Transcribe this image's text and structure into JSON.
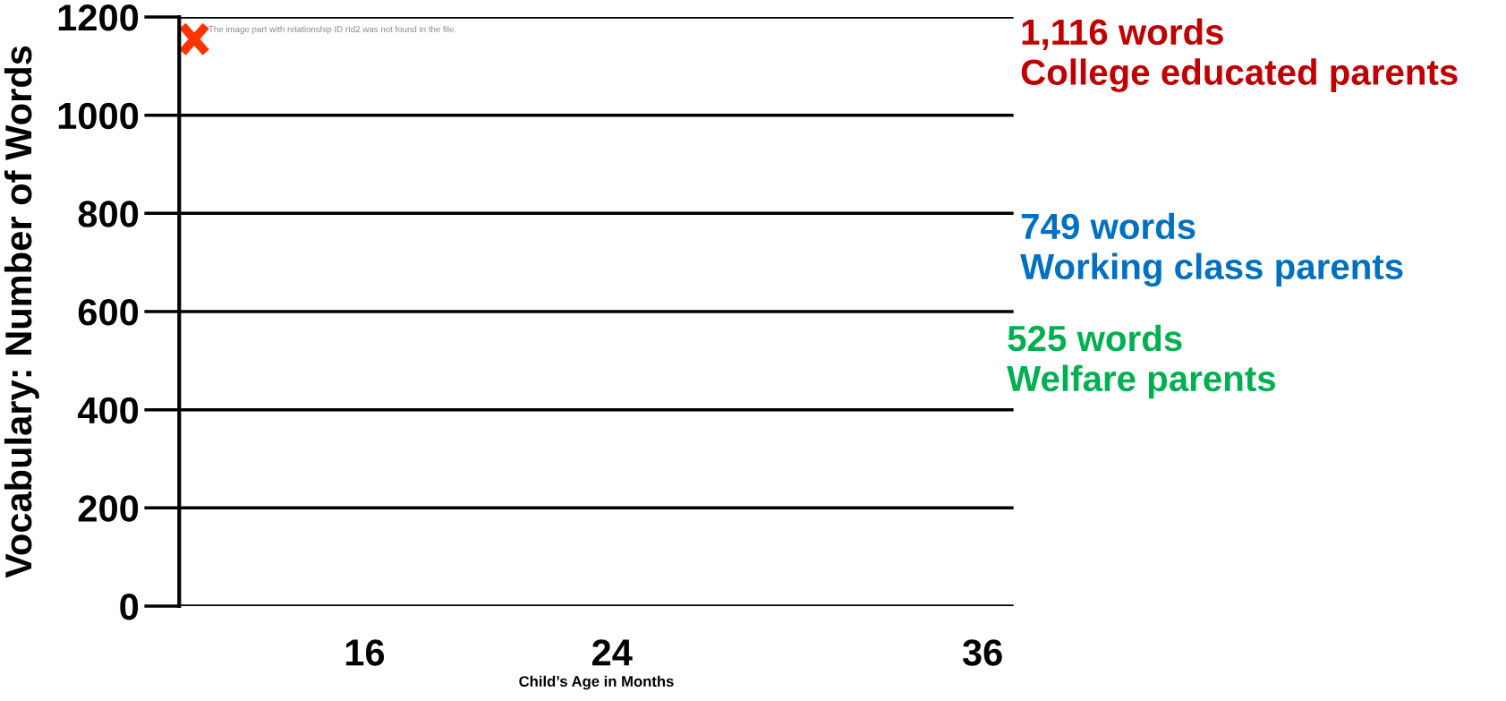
{
  "chart_data": {
    "type": "line",
    "xlabel": "Child’s Age in Months",
    "ylabel": "Vocabulary: Number of Words",
    "xlim": [
      10,
      37
    ],
    "xticks": [
      16,
      24,
      36
    ],
    "ylim": [
      0,
      1200
    ],
    "yticks": [
      0,
      200,
      400,
      600,
      800,
      1000,
      1200
    ],
    "grid": "y",
    "annotations": [
      "The image part with relationship ID rId2 was not found in the file.",
      "1,116 words\nCollege educated parents",
      "749 words\nWorking class parents",
      "525 words\nWelfare parents"
    ]
  }
}
